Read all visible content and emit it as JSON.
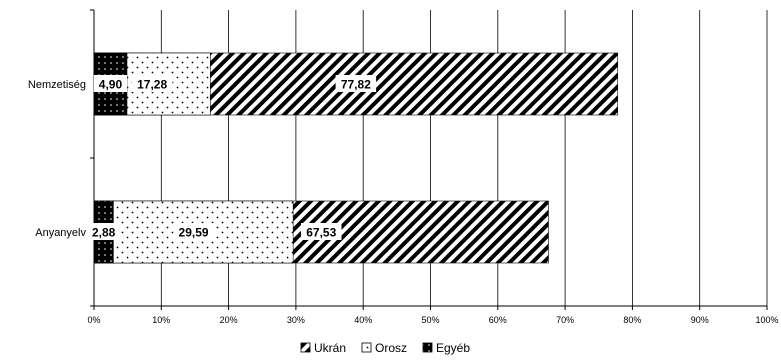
{
  "chart_data": {
    "type": "bar",
    "orientation": "horizontal",
    "stacked": true,
    "percent": true,
    "categories": [
      "Nemzetiség",
      "Anyanyelv"
    ],
    "series": [
      {
        "name": "Ukrán",
        "values": [
          77.82,
          67.53
        ],
        "pattern": "diagonal-stripes"
      },
      {
        "name": "Orosz",
        "values": [
          17.28,
          29.59
        ],
        "pattern": "dots"
      },
      {
        "name": "Egyéb",
        "values": [
          4.9,
          2.88
        ],
        "pattern": "solid-dark"
      }
    ],
    "data_labels": [
      [
        "77,82",
        "67,53"
      ],
      [
        "17,28",
        "29,59"
      ],
      [
        "4,90",
        "2,88"
      ]
    ],
    "xlim": [
      0,
      100
    ],
    "xticks": [
      "0%",
      "10%",
      "20%",
      "30%",
      "40%",
      "50%",
      "60%",
      "70%",
      "80%",
      "90%",
      "100%"
    ],
    "grid": true,
    "legend_position": "bottom"
  }
}
